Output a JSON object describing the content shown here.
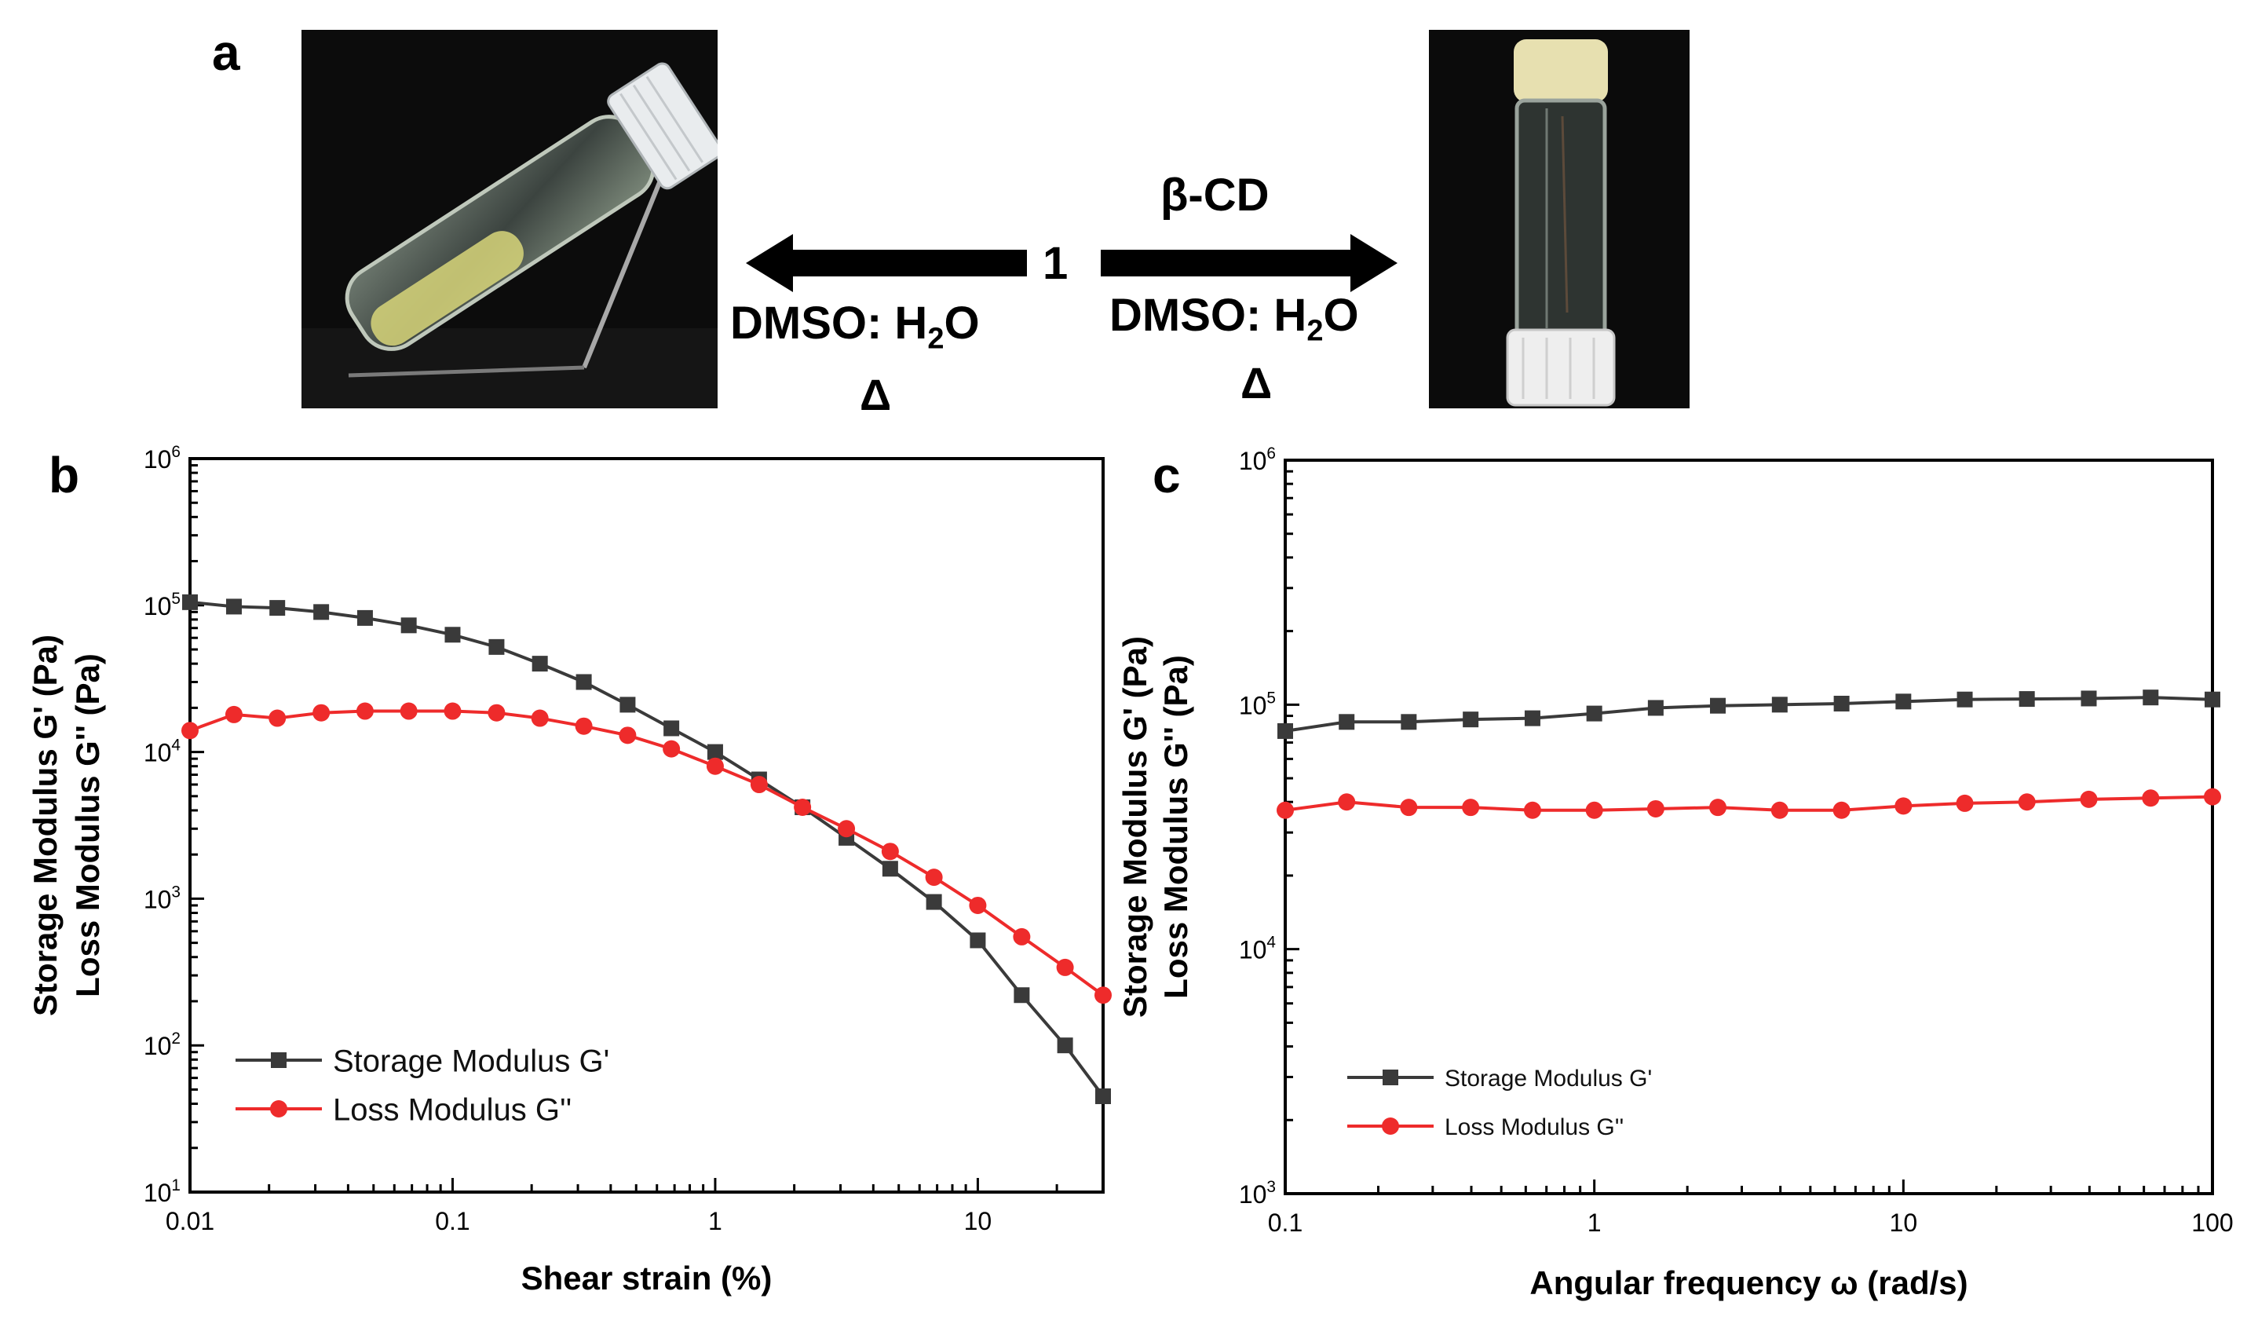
{
  "panels": {
    "a": "a",
    "b": "b",
    "c": "c"
  },
  "scheme": {
    "compound": "1",
    "additive": "β-CD",
    "left_solvent": {
      "prefix": "DMSO: H",
      "sub": "2",
      "suffix": "O"
    },
    "right_solvent": {
      "prefix": "DMSO: H",
      "sub": "2",
      "suffix": "O"
    },
    "heat_left": "Δ",
    "heat_right": "Δ"
  },
  "colors": {
    "storage": "#3a3a3a",
    "loss": "#ee2b2b",
    "axis": "#000000"
  },
  "chart_data": [
    {
      "type": "line",
      "panel": "b",
      "title": "",
      "xlabel": "Shear strain (%)",
      "ylabel_lines": [
        "Storage Modulus G' (Pa)",
        "Loss Modulus G'' (Pa)"
      ],
      "xscale": "log",
      "yscale": "log",
      "xlim": [
        0.01,
        30
      ],
      "ylim": [
        10,
        1000000
      ],
      "xticks": [
        {
          "v": 0.01,
          "label": "0.01"
        },
        {
          "v": 0.1,
          "label": "0.1"
        },
        {
          "v": 1,
          "label": "1"
        },
        {
          "v": 10,
          "label": "10"
        }
      ],
      "yticks": [
        {
          "v": 10,
          "base": "10",
          "exp": "1"
        },
        {
          "v": 100,
          "base": "10",
          "exp": "2"
        },
        {
          "v": 1000,
          "base": "10",
          "exp": "3"
        },
        {
          "v": 10000,
          "base": "10",
          "exp": "4"
        },
        {
          "v": 100000,
          "base": "10",
          "exp": "5"
        },
        {
          "v": 1000000,
          "base": "10",
          "exp": "6"
        }
      ],
      "legend": "lower-left",
      "series": [
        {
          "name": "Storage Modulus G'",
          "marker": "square",
          "color_key": "storage",
          "x": [
            0.01,
            0.0147,
            0.0215,
            0.0316,
            0.0464,
            0.0681,
            0.1,
            0.147,
            0.215,
            0.316,
            0.464,
            0.681,
            1.0,
            1.47,
            2.15,
            3.16,
            4.64,
            6.81,
            10.0,
            14.7,
            21.5,
            30
          ],
          "y": [
            105000,
            98000,
            96000,
            90000,
            82000,
            73000,
            63000,
            52000,
            40000,
            30000,
            21000,
            14500,
            10000,
            6500,
            4200,
            2600,
            1600,
            950,
            520,
            220,
            100,
            45
          ]
        },
        {
          "name": "Loss Modulus G''",
          "marker": "circle",
          "color_key": "loss",
          "x": [
            0.01,
            0.0147,
            0.0215,
            0.0316,
            0.0464,
            0.0681,
            0.1,
            0.147,
            0.215,
            0.316,
            0.464,
            0.681,
            1.0,
            1.47,
            2.15,
            3.16,
            4.64,
            6.81,
            10.0,
            14.7,
            21.5,
            30
          ],
          "y": [
            14000,
            18000,
            17000,
            18500,
            19000,
            19000,
            19000,
            18500,
            17000,
            15000,
            13000,
            10500,
            8000,
            6000,
            4200,
            3000,
            2100,
            1400,
            900,
            550,
            340,
            220
          ]
        }
      ]
    },
    {
      "type": "line",
      "panel": "c",
      "title": "",
      "xlabel": "Angular frequency ω (rad/s)",
      "ylabel_lines": [
        "Storage Modulus G' (Pa)",
        "Loss Modulus G'' (Pa)"
      ],
      "xscale": "log",
      "yscale": "log",
      "xlim": [
        0.1,
        100
      ],
      "ylim": [
        1000,
        1000000
      ],
      "xticks": [
        {
          "v": 0.1,
          "label": "0.1"
        },
        {
          "v": 1,
          "label": "1"
        },
        {
          "v": 10,
          "label": "10"
        },
        {
          "v": 100,
          "label": "100"
        }
      ],
      "yticks": [
        {
          "v": 1000,
          "base": "10",
          "exp": "3"
        },
        {
          "v": 10000,
          "base": "10",
          "exp": "4"
        },
        {
          "v": 100000,
          "base": "10",
          "exp": "5"
        },
        {
          "v": 1000000,
          "base": "10",
          "exp": "6"
        }
      ],
      "legend": "lower-left",
      "series": [
        {
          "name": "Storage Modulus G'",
          "marker": "square",
          "color_key": "storage",
          "x": [
            0.1,
            0.158,
            0.251,
            0.398,
            0.631,
            1.0,
            1.58,
            2.51,
            3.98,
            6.31,
            10.0,
            15.8,
            25.1,
            39.8,
            63.1,
            100
          ],
          "y": [
            78000,
            85000,
            85000,
            87000,
            88000,
            92000,
            97000,
            99000,
            100000,
            101000,
            103000,
            105000,
            105500,
            106000,
            107000,
            105000
          ]
        },
        {
          "name": "Loss Modulus G''",
          "marker": "circle",
          "color_key": "loss",
          "x": [
            0.1,
            0.158,
            0.251,
            0.398,
            0.631,
            1.0,
            1.58,
            2.51,
            3.98,
            6.31,
            10.0,
            15.8,
            25.1,
            39.8,
            63.1,
            100
          ],
          "y": [
            37000,
            40000,
            38000,
            38000,
            37000,
            37000,
            37500,
            38000,
            37000,
            37000,
            38500,
            39500,
            40000,
            41000,
            41500,
            42000
          ]
        }
      ]
    }
  ]
}
